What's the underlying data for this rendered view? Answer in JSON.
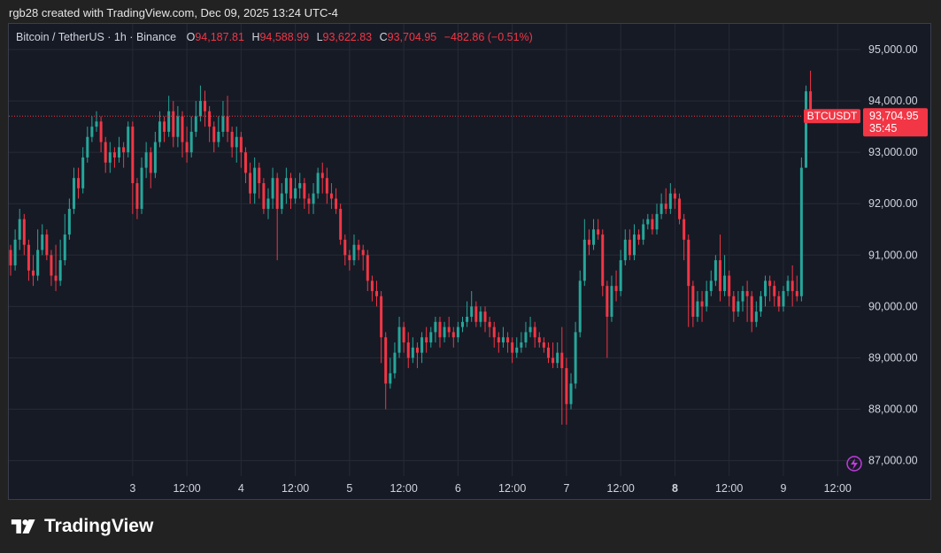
{
  "credit": "rgb28 created with TradingView.com, Dec 09, 2025 13:24 UTC-4",
  "legend": {
    "symbol": "Bitcoin / TetherUS · 1h · Binance",
    "open_key": "O",
    "open": "94,187.81",
    "high_key": "H",
    "high": "94,588.99",
    "low_key": "L",
    "low": "93,622.83",
    "close_key": "C",
    "close": "93,704.95",
    "change": "−482.86 (−0.51%)"
  },
  "price_tag": {
    "ticker": "BTCUSDT",
    "price": "93,704.95",
    "countdown": "35:45"
  },
  "brand": {
    "name": "TradingView",
    "logo": "tradingview-logo-icon"
  },
  "colors": {
    "up": "#26a69a",
    "down": "#f23645",
    "background": "#161a25",
    "grid": "#262a35",
    "accent": "#c33ae0"
  },
  "chart_data": {
    "type": "candlestick",
    "interval": "1h",
    "ylim": [
      86700,
      95500
    ],
    "yticks": [
      {
        "value": 95000,
        "label": "95,000.00"
      },
      {
        "value": 94000,
        "label": "94,000.00"
      },
      {
        "value": 93000,
        "label": "93,000.00"
      },
      {
        "value": 92000,
        "label": "92,000.00"
      },
      {
        "value": 91000,
        "label": "91,000.00"
      },
      {
        "value": 90000,
        "label": "90,000.00"
      },
      {
        "value": 89000,
        "label": "89,000.00"
      },
      {
        "value": 88000,
        "label": "88,000.00"
      },
      {
        "value": 87000,
        "label": "87,000.00"
      }
    ],
    "xticks": [
      {
        "index": 27,
        "label": "3",
        "bold": false
      },
      {
        "index": 39,
        "label": "12:00",
        "bold": false
      },
      {
        "index": 51,
        "label": "4",
        "bold": false
      },
      {
        "index": 63,
        "label": "12:00",
        "bold": false
      },
      {
        "index": 75,
        "label": "5",
        "bold": false
      },
      {
        "index": 87,
        "label": "12:00",
        "bold": false
      },
      {
        "index": 99,
        "label": "6",
        "bold": false
      },
      {
        "index": 111,
        "label": "12:00",
        "bold": false
      },
      {
        "index": 123,
        "label": "7",
        "bold": false
      },
      {
        "index": 135,
        "label": "12:00",
        "bold": false
      },
      {
        "index": 147,
        "label": "8",
        "bold": true
      },
      {
        "index": 159,
        "label": "12:00",
        "bold": false
      },
      {
        "index": 171,
        "label": "9",
        "bold": false
      },
      {
        "index": 183,
        "label": "12:00",
        "bold": false
      }
    ],
    "last_price": 93704.95,
    "candles": [
      [
        91100,
        90800,
        91200,
        90600
      ],
      [
        90800,
        91300,
        91500,
        90700
      ],
      [
        91300,
        91700,
        91900,
        91100
      ],
      [
        91700,
        91200,
        91800,
        91000
      ],
      [
        91200,
        90700,
        91300,
        90500
      ],
      [
        90700,
        90600,
        91000,
        90400
      ],
      [
        90600,
        91100,
        91500,
        90500
      ],
      [
        91100,
        91400,
        91600,
        91000
      ],
      [
        91400,
        91000,
        91500,
        90900
      ],
      [
        91000,
        90600,
        91100,
        90400
      ],
      [
        90600,
        90500,
        91200,
        90300
      ],
      [
        90500,
        90900,
        91300,
        90400
      ],
      [
        90900,
        91400,
        91800,
        90800
      ],
      [
        91400,
        91900,
        92100,
        91300
      ],
      [
        91900,
        92500,
        92700,
        91800
      ],
      [
        92500,
        92300,
        92700,
        92100
      ],
      [
        92300,
        92900,
        93100,
        92200
      ],
      [
        92900,
        93300,
        93500,
        92800
      ],
      [
        93300,
        93500,
        93700,
        93200
      ],
      [
        93500,
        93600,
        93800,
        93400
      ],
      [
        93600,
        93200,
        93700,
        93000
      ],
      [
        93200,
        92800,
        93300,
        92600
      ],
      [
        92800,
        93000,
        93200,
        92600
      ],
      [
        93000,
        92900,
        93100,
        92700
      ],
      [
        92900,
        93100,
        93300,
        92800
      ],
      [
        93100,
        93000,
        93200,
        92700
      ],
      [
        93000,
        93500,
        93600,
        92900
      ],
      [
        93500,
        92400,
        93600,
        91800
      ],
      [
        92400,
        91900,
        92500,
        91700
      ],
      [
        91900,
        92700,
        92900,
        91800
      ],
      [
        92700,
        93000,
        93200,
        92500
      ],
      [
        93000,
        92600,
        93100,
        92300
      ],
      [
        92600,
        93200,
        93400,
        92500
      ],
      [
        93200,
        93600,
        93800,
        93100
      ],
      [
        93600,
        93400,
        93700,
        93200
      ],
      [
        93400,
        93800,
        94100,
        93300
      ],
      [
        93800,
        93300,
        94000,
        93100
      ],
      [
        93300,
        93700,
        93900,
        93100
      ],
      [
        93700,
        93200,
        93800,
        92900
      ],
      [
        93200,
        93000,
        93500,
        92800
      ],
      [
        93000,
        93400,
        93700,
        92900
      ],
      [
        93400,
        93700,
        94000,
        93300
      ],
      [
        93700,
        94000,
        94300,
        93600
      ],
      [
        94000,
        93800,
        94200,
        93500
      ],
      [
        93800,
        93500,
        93900,
        93200
      ],
      [
        93500,
        93200,
        93600,
        93000
      ],
      [
        93200,
        93400,
        93700,
        93100
      ],
      [
        93400,
        93700,
        94000,
        93300
      ],
      [
        93700,
        93400,
        94100,
        93200
      ],
      [
        93400,
        93100,
        93500,
        92900
      ],
      [
        93100,
        93300,
        93500,
        92800
      ],
      [
        93300,
        93000,
        93400,
        92700
      ],
      [
        93000,
        92600,
        93100,
        92400
      ],
      [
        92600,
        92200,
        92800,
        92000
      ],
      [
        92200,
        92700,
        92900,
        92000
      ],
      [
        92700,
        92400,
        92800,
        92100
      ],
      [
        92400,
        91900,
        92500,
        91800
      ],
      [
        91900,
        92100,
        92300,
        91700
      ],
      [
        92100,
        92500,
        92700,
        91900
      ],
      [
        92500,
        91900,
        92600,
        90900
      ],
      [
        91900,
        92200,
        92400,
        91800
      ],
      [
        92200,
        92500,
        92700,
        92000
      ],
      [
        92500,
        92100,
        92600,
        91900
      ],
      [
        92100,
        92300,
        92500,
        92000
      ],
      [
        92300,
        92400,
        92600,
        92100
      ],
      [
        92400,
        92100,
        92500,
        91900
      ],
      [
        92100,
        92000,
        92200,
        91800
      ],
      [
        92000,
        92200,
        92400,
        91800
      ],
      [
        92200,
        92600,
        92700,
        92100
      ],
      [
        92600,
        92500,
        92800,
        92200
      ],
      [
        92500,
        92200,
        92700,
        92000
      ],
      [
        92200,
        92100,
        92400,
        91900
      ],
      [
        92100,
        91900,
        92300,
        91800
      ],
      [
        91900,
        91300,
        92000,
        91200
      ],
      [
        91300,
        91000,
        91400,
        90800
      ],
      [
        91000,
        90900,
        91100,
        90700
      ],
      [
        90900,
        91200,
        91400,
        90800
      ],
      [
        91200,
        91100,
        91300,
        90900
      ],
      [
        91100,
        91000,
        91200,
        90700
      ],
      [
        91000,
        90500,
        91100,
        90300
      ],
      [
        90500,
        90300,
        90600,
        90100
      ],
      [
        90300,
        90200,
        90500,
        90000
      ],
      [
        90200,
        89400,
        90300,
        88900
      ],
      [
        89400,
        88500,
        89500,
        88000
      ],
      [
        88500,
        88700,
        89000,
        88400
      ],
      [
        88700,
        89100,
        89300,
        88600
      ],
      [
        89100,
        89600,
        89800,
        89000
      ],
      [
        89600,
        89300,
        89700,
        89100
      ],
      [
        89300,
        89000,
        89500,
        88800
      ],
      [
        89000,
        89200,
        89400,
        88900
      ],
      [
        89200,
        89100,
        89300,
        88800
      ],
      [
        89100,
        89400,
        89500,
        88900
      ],
      [
        89400,
        89300,
        89600,
        89100
      ],
      [
        89300,
        89500,
        89600,
        89200
      ],
      [
        89500,
        89700,
        89800,
        89300
      ],
      [
        89700,
        89400,
        89800,
        89200
      ],
      [
        89400,
        89600,
        89700,
        89300
      ],
      [
        89600,
        89500,
        89800,
        89400
      ],
      [
        89500,
        89400,
        89600,
        89200
      ],
      [
        89400,
        89600,
        89700,
        89300
      ],
      [
        89600,
        89700,
        89800,
        89500
      ],
      [
        89700,
        89800,
        90100,
        89600
      ],
      [
        89800,
        90000,
        90300,
        89700
      ],
      [
        90000,
        89700,
        90100,
        89600
      ],
      [
        89700,
        89900,
        90000,
        89600
      ],
      [
        89900,
        89700,
        90000,
        89500
      ],
      [
        89700,
        89600,
        89800,
        89400
      ],
      [
        89600,
        89400,
        89700,
        89200
      ],
      [
        89400,
        89300,
        89500,
        89100
      ],
      [
        89300,
        89400,
        89600,
        89200
      ],
      [
        89400,
        89300,
        89500,
        89100
      ],
      [
        89300,
        89100,
        89400,
        88900
      ],
      [
        89100,
        89200,
        89400,
        89000
      ],
      [
        89200,
        89300,
        89500,
        89100
      ],
      [
        89300,
        89500,
        89700,
        89200
      ],
      [
        89500,
        89600,
        89800,
        89400
      ],
      [
        89600,
        89400,
        89700,
        89200
      ],
      [
        89400,
        89300,
        89500,
        89200
      ],
      [
        89300,
        89200,
        89400,
        89100
      ],
      [
        89200,
        89000,
        89300,
        88900
      ],
      [
        89000,
        88900,
        89300,
        88800
      ],
      [
        88900,
        89100,
        89300,
        88800
      ],
      [
        89100,
        88800,
        89600,
        87700
      ],
      [
        88800,
        88100,
        89000,
        87700
      ],
      [
        88100,
        88500,
        88700,
        88000
      ],
      [
        88500,
        89500,
        89700,
        88400
      ],
      [
        89500,
        90500,
        90700,
        89400
      ],
      [
        90500,
        91300,
        91700,
        90400
      ],
      [
        91300,
        91200,
        91500,
        91000
      ],
      [
        91200,
        91500,
        91700,
        91100
      ],
      [
        91500,
        91400,
        91700,
        91300
      ],
      [
        91400,
        90400,
        91500,
        90200
      ],
      [
        90400,
        89800,
        90500,
        89000
      ],
      [
        89800,
        90400,
        90600,
        89700
      ],
      [
        90400,
        90300,
        90700,
        90100
      ],
      [
        90300,
        90900,
        91100,
        90200
      ],
      [
        90900,
        91300,
        91500,
        90800
      ],
      [
        91300,
        91000,
        91500,
        90900
      ],
      [
        91000,
        91400,
        91600,
        90900
      ],
      [
        91400,
        91300,
        91500,
        91200
      ],
      [
        91300,
        91600,
        91700,
        91200
      ],
      [
        91600,
        91700,
        91800,
        91500
      ],
      [
        91700,
        91500,
        91800,
        91400
      ],
      [
        91500,
        91800,
        92000,
        91400
      ],
      [
        91800,
        92000,
        92200,
        91700
      ],
      [
        92000,
        91900,
        92300,
        91800
      ],
      [
        91900,
        92200,
        92400,
        91800
      ],
      [
        92200,
        92100,
        92300,
        91900
      ],
      [
        92100,
        91700,
        92200,
        91600
      ],
      [
        91700,
        91300,
        91800,
        90900
      ],
      [
        91300,
        90400,
        91400,
        89600
      ],
      [
        90400,
        89800,
        90500,
        89600
      ],
      [
        89800,
        90100,
        90300,
        89700
      ],
      [
        90100,
        90000,
        90300,
        89700
      ],
      [
        90000,
        90300,
        90500,
        89900
      ],
      [
        90300,
        90500,
        90700,
        90200
      ],
      [
        90500,
        90900,
        91000,
        90400
      ],
      [
        90900,
        90300,
        91400,
        90100
      ],
      [
        90300,
        90600,
        91000,
        90200
      ],
      [
        90600,
        90200,
        90700,
        90000
      ],
      [
        90200,
        89900,
        90300,
        89700
      ],
      [
        89900,
        90100,
        90300,
        89800
      ],
      [
        90100,
        90300,
        90400,
        89900
      ],
      [
        90300,
        90200,
        90500,
        89700
      ],
      [
        90200,
        89700,
        90300,
        89500
      ],
      [
        89700,
        89900,
        90100,
        89600
      ],
      [
        89900,
        90200,
        90300,
        89800
      ],
      [
        90200,
        90500,
        90600,
        90000
      ],
      [
        90500,
        90400,
        90600,
        90100
      ],
      [
        90400,
        90200,
        90500,
        90000
      ],
      [
        90200,
        90000,
        90300,
        89900
      ],
      [
        90000,
        90300,
        90400,
        89900
      ],
      [
        90300,
        90500,
        90600,
        90200
      ],
      [
        90500,
        90300,
        90800,
        90000
      ],
      [
        90300,
        90200,
        90600,
        90100
      ],
      [
        90200,
        92700,
        92900,
        90100
      ],
      [
        92700,
        94187.81,
        94300,
        92700
      ],
      [
        94187.81,
        93704.95,
        94588.99,
        93622.83
      ]
    ]
  }
}
